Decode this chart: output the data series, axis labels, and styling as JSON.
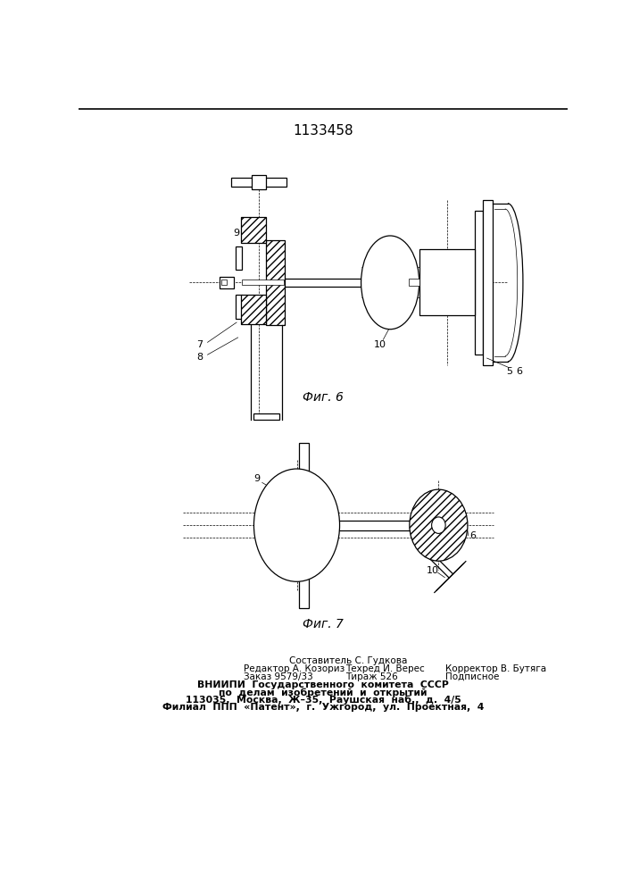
{
  "title": "1133458",
  "fig6_label": "Фиг. 6",
  "fig7_label": "Фиг. 7",
  "bg_color": "#ffffff",
  "footer_line0": "Составитель С. Гудкова",
  "footer_line1_left": "Редактор А. Козориз",
  "footer_line1_mid": "Техред И. Верес",
  "footer_line1_right": "Корректор В. Бутяга",
  "footer_line2_left": "Заказ 9579/33",
  "footer_line2_mid": "Тираж 526",
  "footer_line2_right": "Подписное",
  "footer_line3": "ВНИИПИ  Государственного  комитета  СССР",
  "footer_line4": "по  делам  изобретений  и  открытий",
  "footer_line5": "113035,  Москва,  Ж–35,  Раушская  наб.,  д.  4/5",
  "footer_line6": "Филиал  ППП  «Патент»,  г.  Ужгород,  ул.  Проектная,  4"
}
